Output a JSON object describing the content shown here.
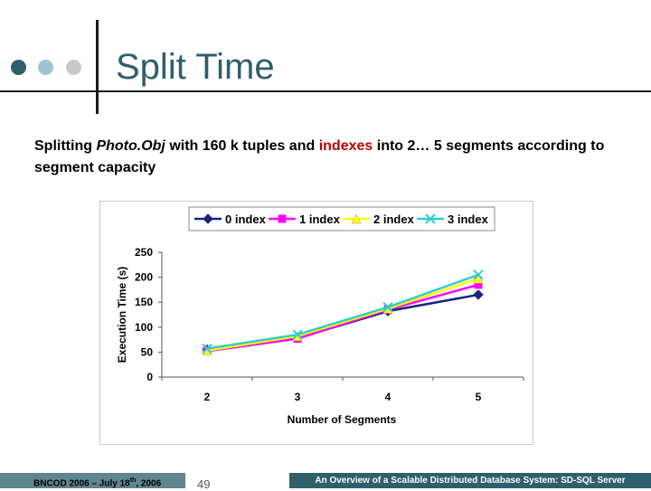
{
  "slide": {
    "title": "Split Time",
    "body_part1": "Splitting ",
    "body_italic": "Photo.Obj",
    "body_part2": " with 160 k tuples and ",
    "body_red": "indexes",
    "body_part3": " into 2… 5 segments according to segment capacity"
  },
  "footer": {
    "left_prefix": "BNCOD 2006 – July 18",
    "left_sup": "th",
    "left_suffix": ", 2006",
    "page_number": "49",
    "right_text": "An Overview of a Scalable Distributed Database System: SD-SQL Server"
  },
  "colors": {
    "dot1": "#2e5f6b",
    "dot2": "#9ec5cf",
    "dot3": "#c8c8c8",
    "footer_left_bg": "#5f8590",
    "footer_right_bg": "#2e5f6b",
    "index_text": "#c00000"
  },
  "chart_data": {
    "type": "line",
    "categories": [
      "2",
      "3",
      "4",
      "5"
    ],
    "xlabel": "Number of Segments",
    "ylabel": "Execution Time (s)",
    "ylim": [
      0,
      250
    ],
    "yticks": [
      0,
      50,
      100,
      150,
      200,
      250
    ],
    "grid": false,
    "legend_position": "top",
    "series": [
      {
        "name": "0 index",
        "values": [
          55,
          78,
          132,
          165
        ],
        "color": "#1a237e",
        "marker": "diamond"
      },
      {
        "name": "1 index",
        "values": [
          52,
          77,
          135,
          185
        ],
        "color": "#ff00ff",
        "marker": "square"
      },
      {
        "name": "2 index",
        "values": [
          53,
          82,
          137,
          197
        ],
        "color": "#ffff00",
        "marker": "triangle"
      },
      {
        "name": "3 index",
        "values": [
          57,
          85,
          140,
          205
        ],
        "color": "#33cccc",
        "marker": "x"
      }
    ]
  }
}
